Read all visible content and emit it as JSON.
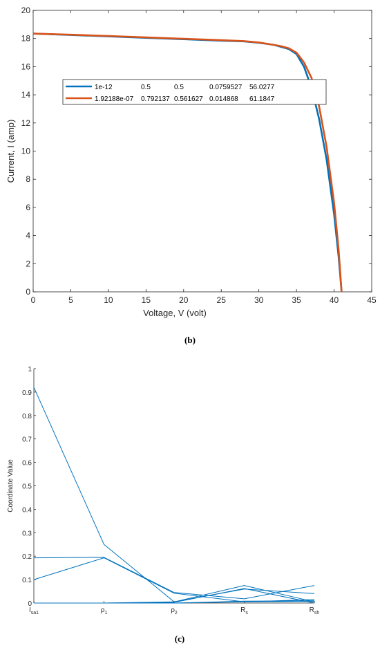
{
  "caption_b": "(b)",
  "caption_c": "(c)",
  "chart_data": [
    {
      "type": "line",
      "xlabel": "Voltage, V (volt)",
      "ylabel": "Current, I (amp)",
      "xlim": [
        0,
        45
      ],
      "ylim": [
        0,
        20
      ],
      "xticks": [
        "0",
        "5",
        "10",
        "15",
        "20",
        "25",
        "30",
        "35",
        "40",
        "45"
      ],
      "yticks": [
        "0",
        "2",
        "4",
        "6",
        "8",
        "10",
        "12",
        "14",
        "16",
        "18",
        "20"
      ],
      "grid": false,
      "legend_position": "upper-left",
      "series": [
        {
          "name": "1e-12",
          "legend_values": [
            "0.5",
            "0.5",
            "0.0759527",
            "56.0277"
          ],
          "color": "#0072BD",
          "x": [
            0,
            5,
            10,
            15,
            20,
            25,
            28,
            30,
            32,
            33,
            34,
            35,
            36,
            37,
            38,
            39,
            40,
            40.6,
            41
          ],
          "y": [
            18.35,
            18.25,
            18.15,
            18.05,
            17.95,
            17.85,
            17.8,
            17.7,
            17.55,
            17.4,
            17.25,
            16.9,
            16.0,
            14.5,
            12.3,
            9.4,
            5.5,
            2.5,
            0
          ]
        },
        {
          "name": "1.92188e-07",
          "legend_values": [
            "0.792137",
            "0.561627",
            "0.014868",
            "61.1847"
          ],
          "color": "#D95319",
          "x": [
            0,
            5,
            10,
            15,
            20,
            25,
            28,
            30,
            32,
            33,
            34,
            35,
            36,
            37,
            38,
            39,
            40,
            40.6,
            41
          ],
          "y": [
            18.35,
            18.27,
            18.18,
            18.08,
            17.98,
            17.88,
            17.82,
            17.72,
            17.55,
            17.45,
            17.3,
            17.0,
            16.3,
            15.2,
            13.2,
            10.3,
            6.3,
            3.0,
            0
          ]
        }
      ]
    },
    {
      "type": "line",
      "subtype": "parallel-coordinates",
      "ylabel": "Coordinate Value",
      "ylim": [
        0,
        1
      ],
      "yticks": [
        "0",
        "0.1",
        "0.2",
        "0.3",
        "0.4",
        "0.5",
        "0.6",
        "0.7",
        "0.8",
        "0.9",
        "1"
      ],
      "categories": [
        {
          "base": "I",
          "sub": "sa1"
        },
        {
          "base": "ρ",
          "sub": "1"
        },
        {
          "base": "ρ",
          "sub": "2"
        },
        {
          "base": "R",
          "sub": "s"
        },
        {
          "base": "R",
          "sub": "sh"
        }
      ],
      "color": "#0072BD",
      "grid": false,
      "series": [
        {
          "values": [
            0.92,
            0.25,
            0.005,
            0.06,
            0.04
          ]
        },
        {
          "values": [
            0.193,
            0.195,
            0.045,
            0.018,
            0.075
          ]
        },
        {
          "values": [
            0.1,
            0.193,
            0.042,
            0.005,
            0.007
          ]
        },
        {
          "values": [
            0.0,
            0.0,
            0.005,
            0.075,
            0.005
          ]
        },
        {
          "values": [
            0.0,
            0.0,
            0.003,
            0.062,
            0.0
          ]
        },
        {
          "values": [
            0.0,
            0.0,
            0.0,
            0.008,
            0.01
          ]
        },
        {
          "values": [
            0.0,
            0.0,
            0.0,
            0.005,
            0.015
          ]
        }
      ]
    }
  ]
}
